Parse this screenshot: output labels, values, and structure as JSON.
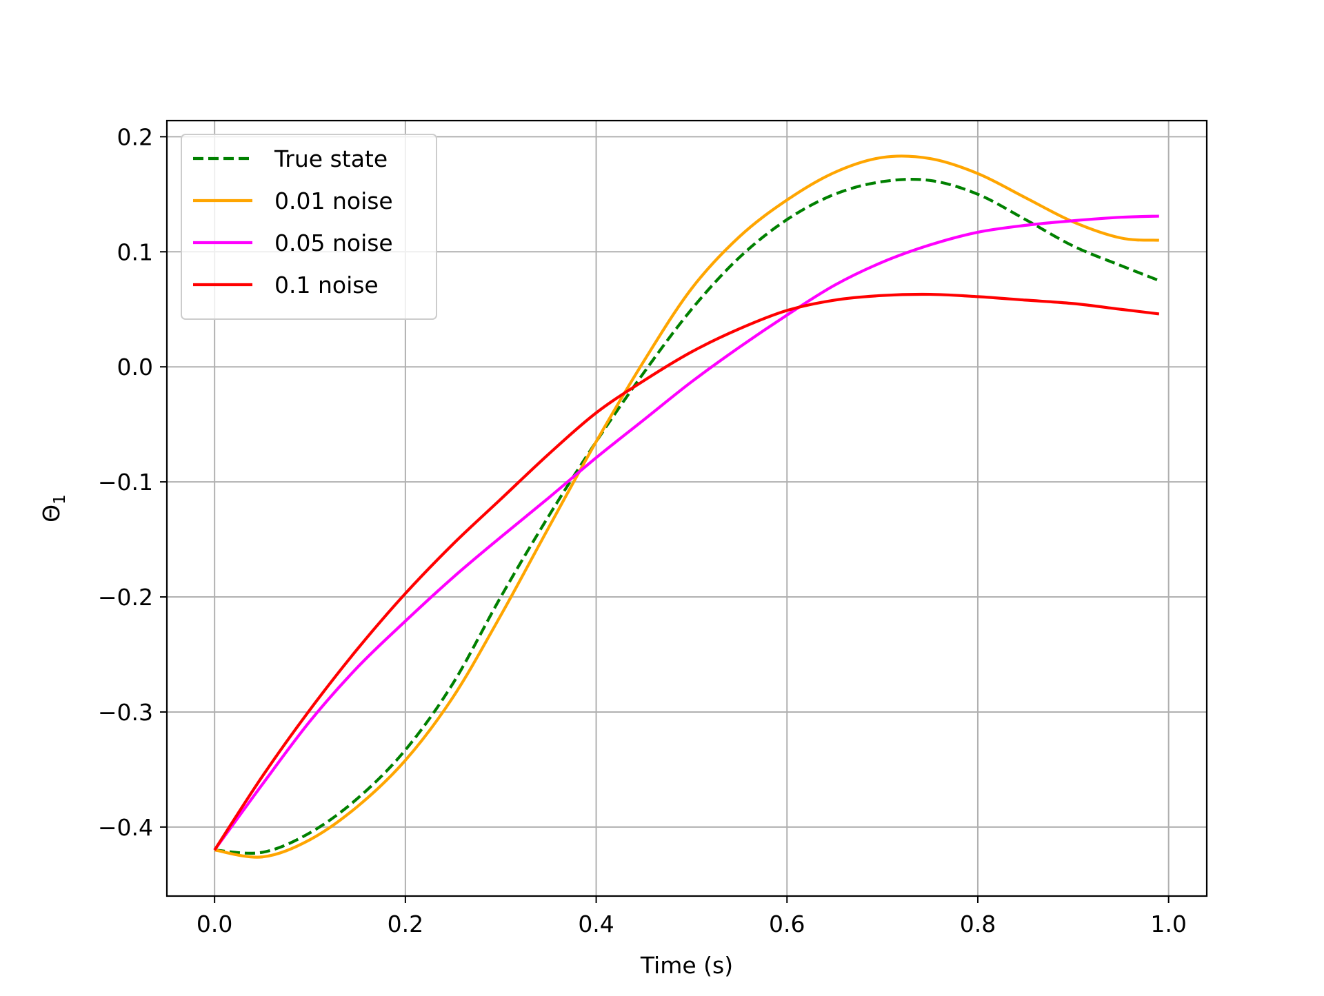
{
  "chart_data": {
    "type": "line",
    "title": "",
    "xlabel": "Time (s)",
    "ylabel": "Θ",
    "ylabel_subscript": "1",
    "xlim": [
      -0.05,
      1.04
    ],
    "ylim": [
      -0.46,
      0.214
    ],
    "xticks": [
      0.0,
      0.2,
      0.4,
      0.6,
      0.8,
      1.0
    ],
    "xtick_labels": [
      "0.0",
      "0.2",
      "0.4",
      "0.6",
      "0.8",
      "1.0"
    ],
    "yticks": [
      -0.4,
      -0.3,
      -0.2,
      -0.1,
      0.0,
      0.1,
      0.2
    ],
    "ytick_labels": [
      "−0.4",
      "−0.3",
      "−0.2",
      "−0.1",
      "0.0",
      "0.1",
      "0.2"
    ],
    "grid": true,
    "legend_position": "upper-left",
    "x": [
      0.0,
      0.05,
      0.1,
      0.15,
      0.2,
      0.25,
      0.3,
      0.35,
      0.4,
      0.45,
      0.5,
      0.55,
      0.6,
      0.65,
      0.7,
      0.75,
      0.8,
      0.85,
      0.9,
      0.95,
      0.99
    ],
    "series": [
      {
        "name": "True state",
        "color": "#008000",
        "dash": true,
        "values": [
          -0.42,
          -0.422,
          -0.405,
          -0.375,
          -0.333,
          -0.275,
          -0.2,
          -0.13,
          -0.065,
          -0.005,
          0.05,
          0.095,
          0.128,
          0.15,
          0.161,
          0.162,
          0.15,
          0.128,
          0.105,
          0.088,
          0.075
        ]
      },
      {
        "name": "0.01 noise",
        "color": "#FFA500",
        "dash": false,
        "values": [
          -0.42,
          -0.426,
          -0.411,
          -0.382,
          -0.342,
          -0.287,
          -0.216,
          -0.14,
          -0.065,
          0.005,
          0.068,
          0.113,
          0.145,
          0.169,
          0.182,
          0.181,
          0.168,
          0.147,
          0.126,
          0.112,
          0.11
        ]
      },
      {
        "name": "0.05 noise",
        "color": "#FF00FF",
        "dash": false,
        "values": [
          -0.42,
          -0.363,
          -0.308,
          -0.261,
          -0.221,
          -0.183,
          -0.148,
          -0.114,
          -0.079,
          -0.046,
          -0.013,
          0.017,
          0.045,
          0.071,
          0.091,
          0.106,
          0.117,
          0.123,
          0.127,
          0.13,
          0.131
        ]
      },
      {
        "name": "0.1 noise",
        "color": "#FF0000",
        "dash": false,
        "values": [
          -0.42,
          -0.356,
          -0.298,
          -0.245,
          -0.197,
          -0.154,
          -0.115,
          -0.076,
          -0.04,
          -0.012,
          0.013,
          0.033,
          0.049,
          0.058,
          0.062,
          0.063,
          0.061,
          0.058,
          0.055,
          0.05,
          0.046
        ]
      }
    ]
  }
}
